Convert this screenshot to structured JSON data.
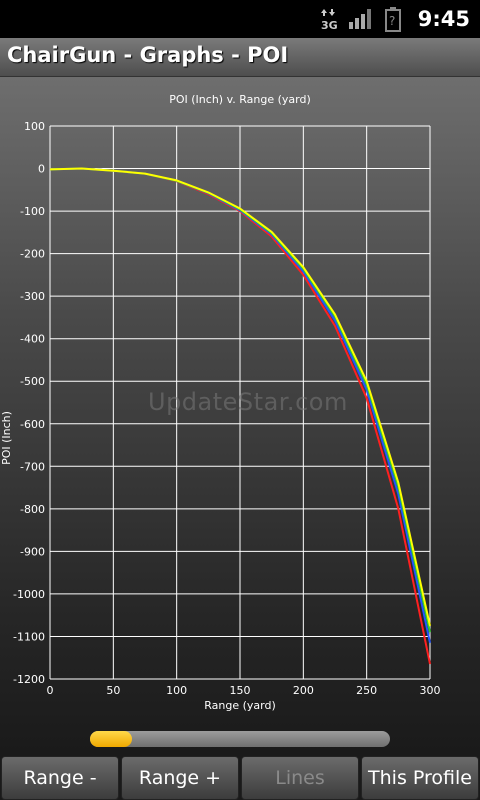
{
  "status_bar": {
    "time": "9:45",
    "network_label": "3G",
    "icons": [
      "data-arrows-icon",
      "signal-icon",
      "battery-icon"
    ]
  },
  "app_bar": {
    "title": "ChairGun - Graphs - POI"
  },
  "watermark": "UpdateStar.com",
  "range_slider": {
    "fraction": 0.14
  },
  "buttons": {
    "range_minus": "Range -",
    "range_plus": "Range +",
    "lines": "Lines",
    "this_profile": "This Profile"
  },
  "colors": {
    "background_top": "#6e6e6e",
    "background_bottom": "#1a1a1a",
    "grid": "#ffffff",
    "series_yellow": "#ffff00",
    "series_green": "#33cc33",
    "series_blue": "#2255ff",
    "series_red": "#ff2020",
    "slider_fill": "#f5b800"
  },
  "chart_data": {
    "type": "line",
    "title": "POI (Inch) v. Range (yard)",
    "xlabel": "Range (yard)",
    "ylabel": "POI (Inch)",
    "xlim": [
      0,
      300
    ],
    "ylim": [
      -1200,
      100
    ],
    "xticks": [
      0,
      50,
      100,
      150,
      200,
      250,
      300
    ],
    "yticks": [
      100,
      0,
      -100,
      -200,
      -300,
      -400,
      -500,
      -600,
      -700,
      -800,
      -900,
      -1000,
      -1100,
      -1200
    ],
    "grid": true,
    "series": [
      {
        "color": "#ff2020",
        "x": [
          0,
          25,
          50,
          75,
          100,
          125,
          150,
          175,
          200,
          225,
          250,
          275,
          300
        ],
        "values": [
          -2,
          0,
          -5,
          -12,
          -30,
          -60,
          -100,
          -160,
          -250,
          -370,
          -540,
          -800,
          -1165
        ]
      },
      {
        "color": "#2255ff",
        "x": [
          0,
          25,
          50,
          75,
          100,
          125,
          150,
          175,
          200,
          225,
          250,
          275,
          300
        ],
        "values": [
          -2,
          0,
          -5,
          -12,
          -29,
          -58,
          -98,
          -155,
          -242,
          -357,
          -520,
          -765,
          -1115
        ]
      },
      {
        "color": "#33cc33",
        "x": [
          0,
          25,
          50,
          75,
          100,
          125,
          150,
          175,
          200,
          225,
          250,
          275,
          300
        ],
        "values": [
          -2,
          0,
          -5,
          -12,
          -29,
          -57,
          -96,
          -152,
          -236,
          -348,
          -508,
          -748,
          -1090
        ]
      },
      {
        "color": "#ffff00",
        "x": [
          0,
          25,
          50,
          75,
          100,
          125,
          150,
          175,
          200,
          225,
          250,
          275,
          300
        ],
        "values": [
          -2,
          0,
          -5,
          -12,
          -28,
          -56,
          -94,
          -149,
          -232,
          -343,
          -500,
          -738,
          -1075
        ]
      }
    ]
  }
}
